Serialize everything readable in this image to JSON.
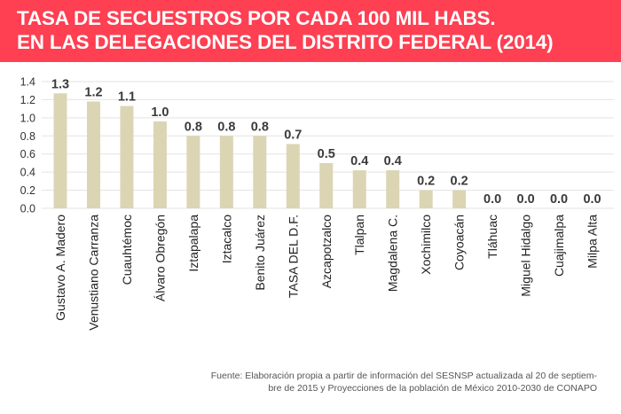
{
  "header": {
    "title_line1": "TASA DE SECUESTROS POR CADA 100 MIL HABS.",
    "title_line2": "EN LAS DELEGACIONES DEL DISTRITO FEDERAL (2014)",
    "background_color": "#ff3f52"
  },
  "chart_data": {
    "type": "bar",
    "title": "TASA DE SECUESTROS POR CADA 100 MIL HABS. EN LAS DELEGACIONES DEL DISTRITO FEDERAL (2014)",
    "xlabel": "",
    "ylabel": "",
    "ylim": [
      0,
      1.4
    ],
    "yticks": [
      "0.0",
      "0.2",
      "0.4",
      "0.6",
      "0.8",
      "1.0",
      "1.2",
      "1.4"
    ],
    "grid": true,
    "bar_color": "#dbd5b4",
    "categories": [
      "Gustavo A. Madero",
      "Venustiano Carranza",
      "Cuauhtémoc",
      "Álvaro Obregón",
      "Iztapalapa",
      "Iztacalco",
      "Benito Juárez",
      "TASA DEL D.F.",
      "Azcapotzalco",
      "Tlalpan",
      "Magdalena C.",
      "Xochimilco",
      "Coyoacán",
      "Tláhuac",
      "Miguel Hidalgo",
      "Cuajimalpa",
      "Milpa Alta"
    ],
    "values": [
      1.27,
      1.18,
      1.13,
      0.96,
      0.8,
      0.8,
      0.8,
      0.71,
      0.5,
      0.42,
      0.42,
      0.2,
      0.2,
      0.0,
      0.0,
      0.0,
      0.0
    ],
    "data_labels": [
      "1.3",
      "1.2",
      "1.1",
      "1.0",
      "0.8",
      "0.8",
      "0.8",
      "0.7",
      "0.5",
      "0.4",
      "0.4",
      "0.2",
      "0.2",
      "0.0",
      "0.0",
      "0.0",
      "0.0"
    ]
  },
  "footer": {
    "source_line1": "Fuente: Elaboración propia a partir de información del SESNSP actualizada al 20 de septiem-",
    "source_line2": "bre de 2015 y Proyecciones de la población de México 2010-2030 de CONAPO"
  }
}
